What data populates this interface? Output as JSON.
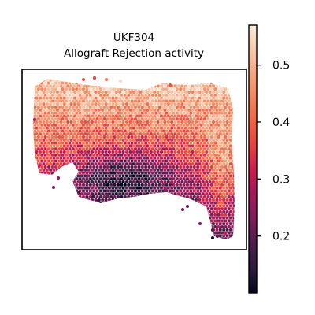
{
  "chart_data": {
    "type": "scatter",
    "title_line1": "UKF304",
    "title_line2": "Allograft Rejection activity",
    "colormap": "rocket",
    "colorbar": {
      "range": [
        0.1,
        0.57
      ],
      "ticks": [
        {
          "value": 0.2,
          "label": "0.2"
        },
        {
          "value": 0.3,
          "label": "0.3"
        },
        {
          "value": 0.4,
          "label": "0.4"
        },
        {
          "value": 0.5,
          "label": "0.5"
        }
      ]
    },
    "colors": {
      "stops": [
        "#03051a",
        "#2d1c3e",
        "#4c1d4b",
        "#7c1d59",
        "#a11a5b",
        "#cb1b4f",
        "#e83f3f",
        "#f06043",
        "#f3845b",
        "#f5a57f",
        "#f6c7ab",
        "#faebdd"
      ]
    },
    "grid": false,
    "legend": "colorbar-right"
  }
}
